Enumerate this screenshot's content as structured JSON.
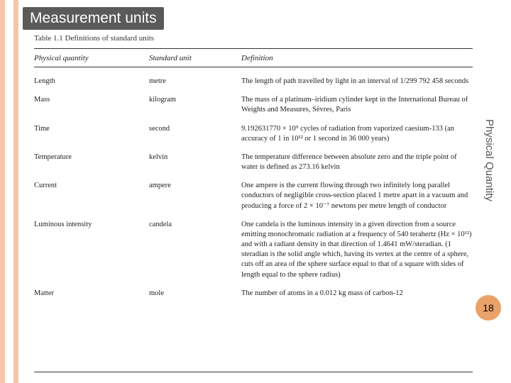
{
  "header": {
    "title": "Measurement units"
  },
  "table": {
    "caption": "Table 1.1  Definitions of standard units",
    "columns": {
      "quantity": "Physical quantity",
      "unit": "Standard unit",
      "definition": "Definition"
    },
    "rows": [
      {
        "quantity": "Length",
        "unit": "metre",
        "definition": "The length of path travelled by light in an interval of 1/299 792 458 seconds"
      },
      {
        "quantity": "Mass",
        "unit": "kilogram",
        "definition": "The mass of a platinum–iridium cylinder kept in the International Bureau of Weights and Measures, Sèvres, Paris"
      },
      {
        "quantity": "Time",
        "unit": "second",
        "definition": "9.192631770 × 10⁹ cycles of radiation from vaporized caesium-133 (an accuracy of 1 in 10¹² or 1 second in 36 000 years)"
      },
      {
        "quantity": "Temperature",
        "unit": "kelvin",
        "definition": "The temperature difference between absolute zero and the triple point of water is defined as 273.16 kelvin"
      },
      {
        "quantity": "Current",
        "unit": "ampere",
        "definition": "One ampere is the current flowing through two infinitely long parallel conductors of negligible cross-section placed 1 metre apart in a vacuum and producing a force of 2 × 10⁻⁷ newtons per metre length of conductor"
      },
      {
        "quantity": "Luminous intensity",
        "unit": "candela",
        "definition": "One candela is the luminous intensity in a given direction from a source emitting monochromatic radiation at a frequency of 540 terahertz (Hz × 10¹²) and with a radiant density in that direction of 1.4641 mW/steradian. (1 steradian is the solid angle which, having its vertex at the centre of a sphere, cuts off an area of the sphere surface equal to that of a square with sides of length equal to the sphere radius)"
      },
      {
        "quantity": "Matter",
        "unit": "mole",
        "definition": "The number of atoms in a 0.012 kg mass of carbon-12"
      }
    ]
  },
  "side_label": "Physical Quantity",
  "page_number": "18",
  "colors": {
    "strip": "#f4c7a8",
    "header_bg": "#5a5a5a",
    "header_text": "#ffffff",
    "badge_bg": "#e9a26a",
    "text": "#222222",
    "rule": "#333333"
  }
}
